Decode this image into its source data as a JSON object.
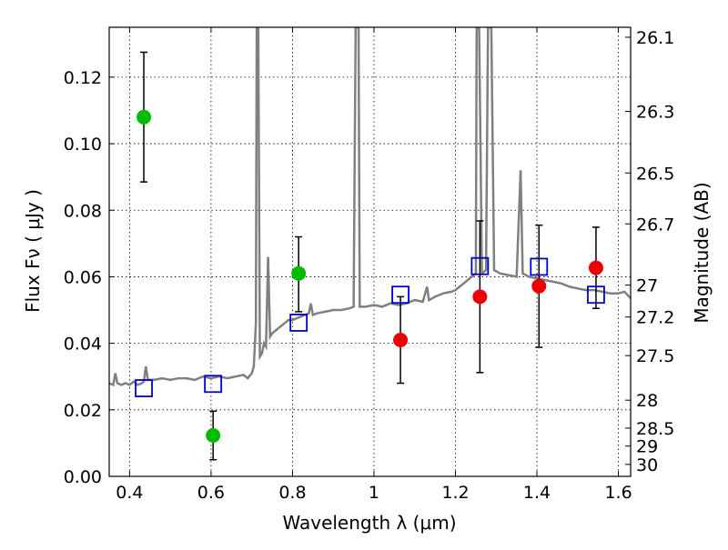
{
  "chart_data": {
    "type": "scatter",
    "xlabel": "Wavelength  λ (μm)",
    "ylabel": "Flux  Fν  ( μJy )",
    "y2label": "Magnitude (AB)",
    "xlim": [
      0.35,
      1.63
    ],
    "ylim": [
      0.0,
      0.135
    ],
    "grid": true,
    "x_ticks": [
      {
        "value": 0.4,
        "label": "0.4"
      },
      {
        "value": 0.6,
        "label": "0.6"
      },
      {
        "value": 0.8,
        "label": "0.8"
      },
      {
        "value": 1.0,
        "label": "1"
      },
      {
        "value": 1.2,
        "label": "1.2"
      },
      {
        "value": 1.4,
        "label": "1.4"
      },
      {
        "value": 1.6,
        "label": "1.6"
      }
    ],
    "y_ticks": [
      {
        "value": 0.0,
        "label": "0.00"
      },
      {
        "value": 0.02,
        "label": "0.02"
      },
      {
        "value": 0.04,
        "label": "0.04"
      },
      {
        "value": 0.06,
        "label": "0.06"
      },
      {
        "value": 0.08,
        "label": "0.08"
      },
      {
        "value": 0.1,
        "label": "0.10"
      },
      {
        "value": 0.12,
        "label": "0.12"
      }
    ],
    "magnitude_ticks": [
      {
        "flux": 0.132,
        "label": "26.1"
      },
      {
        "flux": 0.1097,
        "label": "26.3"
      },
      {
        "flux": 0.0912,
        "label": "26.5"
      },
      {
        "flux": 0.0759,
        "label": "26.7"
      },
      {
        "flux": 0.0575,
        "label": "27"
      },
      {
        "flux": 0.0479,
        "label": "27.2"
      },
      {
        "flux": 0.0363,
        "label": "27.5"
      },
      {
        "flux": 0.0229,
        "label": "28"
      },
      {
        "flux": 0.0145,
        "label": "28.5"
      },
      {
        "flux": 0.0091,
        "label": "29"
      },
      {
        "flux": 0.0036,
        "label": "30"
      }
    ],
    "colors": {
      "spectrum": "#808080",
      "green": "#00bb00",
      "red": "#ee0000",
      "model": "#0000cc",
      "errorbar": "#000000"
    },
    "spectrum": [
      [
        0.35,
        0.028
      ],
      [
        0.36,
        0.0275
      ],
      [
        0.365,
        0.031
      ],
      [
        0.37,
        0.028
      ],
      [
        0.38,
        0.0275
      ],
      [
        0.39,
        0.028
      ],
      [
        0.4,
        0.0275
      ],
      [
        0.41,
        0.0285
      ],
      [
        0.42,
        0.0275
      ],
      [
        0.43,
        0.028
      ],
      [
        0.435,
        0.0285
      ],
      [
        0.44,
        0.033
      ],
      [
        0.445,
        0.029
      ],
      [
        0.46,
        0.029
      ],
      [
        0.48,
        0.0295
      ],
      [
        0.5,
        0.029
      ],
      [
        0.52,
        0.0295
      ],
      [
        0.54,
        0.0295
      ],
      [
        0.56,
        0.029
      ],
      [
        0.58,
        0.03
      ],
      [
        0.6,
        0.0295
      ],
      [
        0.62,
        0.03
      ],
      [
        0.64,
        0.0295
      ],
      [
        0.66,
        0.03
      ],
      [
        0.68,
        0.0305
      ],
      [
        0.69,
        0.0295
      ],
      [
        0.7,
        0.031
      ],
      [
        0.705,
        0.033
      ],
      [
        0.71,
        0.046
      ],
      [
        0.712,
        0.135
      ],
      [
        0.716,
        0.135
      ],
      [
        0.72,
        0.036
      ],
      [
        0.725,
        0.037
      ],
      [
        0.73,
        0.04
      ],
      [
        0.735,
        0.039
      ],
      [
        0.74,
        0.066
      ],
      [
        0.745,
        0.042
      ],
      [
        0.75,
        0.043
      ],
      [
        0.76,
        0.044
      ],
      [
        0.77,
        0.045
      ],
      [
        0.78,
        0.046
      ],
      [
        0.79,
        0.047
      ],
      [
        0.8,
        0.047
      ],
      [
        0.81,
        0.0475
      ],
      [
        0.82,
        0.048
      ],
      [
        0.83,
        0.0485
      ],
      [
        0.84,
        0.049
      ],
      [
        0.845,
        0.052
      ],
      [
        0.85,
        0.0485
      ],
      [
        0.86,
        0.049
      ],
      [
        0.88,
        0.0495
      ],
      [
        0.9,
        0.05
      ],
      [
        0.92,
        0.05
      ],
      [
        0.94,
        0.0505
      ],
      [
        0.95,
        0.051
      ],
      [
        0.955,
        0.135
      ],
      [
        0.962,
        0.135
      ],
      [
        0.965,
        0.051
      ],
      [
        0.98,
        0.051
      ],
      [
        1.0,
        0.0515
      ],
      [
        1.02,
        0.051
      ],
      [
        1.04,
        0.052
      ],
      [
        1.06,
        0.0515
      ],
      [
        1.08,
        0.052
      ],
      [
        1.1,
        0.053
      ],
      [
        1.12,
        0.0525
      ],
      [
        1.13,
        0.057
      ],
      [
        1.135,
        0.053
      ],
      [
        1.15,
        0.054
      ],
      [
        1.17,
        0.055
      ],
      [
        1.19,
        0.0555
      ],
      [
        1.2,
        0.056
      ],
      [
        1.21,
        0.057
      ],
      [
        1.22,
        0.058
      ],
      [
        1.23,
        0.059
      ],
      [
        1.24,
        0.06
      ],
      [
        1.25,
        0.061
      ],
      [
        1.252,
        0.135
      ],
      [
        1.258,
        0.135
      ],
      [
        1.265,
        0.061
      ],
      [
        1.275,
        0.062
      ],
      [
        1.28,
        0.135
      ],
      [
        1.288,
        0.135
      ],
      [
        1.295,
        0.062
      ],
      [
        1.31,
        0.061
      ],
      [
        1.33,
        0.0605
      ],
      [
        1.35,
        0.06
      ],
      [
        1.36,
        0.092
      ],
      [
        1.365,
        0.061
      ],
      [
        1.38,
        0.06
      ],
      [
        1.4,
        0.0595
      ],
      [
        1.42,
        0.059
      ],
      [
        1.44,
        0.0585
      ],
      [
        1.46,
        0.058
      ],
      [
        1.48,
        0.057
      ],
      [
        1.5,
        0.0565
      ],
      [
        1.52,
        0.056
      ],
      [
        1.54,
        0.056
      ],
      [
        1.56,
        0.0555
      ],
      [
        1.58,
        0.055
      ],
      [
        1.6,
        0.055
      ],
      [
        1.615,
        0.0555
      ],
      [
        1.63,
        0.0535
      ]
    ],
    "points_green": [
      {
        "x": 0.435,
        "y": 0.108,
        "err_low": 0.0885,
        "err_high": 0.1275
      },
      {
        "x": 0.605,
        "y": 0.0123,
        "err_low": 0.005,
        "err_high": 0.0196
      },
      {
        "x": 0.815,
        "y": 0.061,
        "err_low": 0.0495,
        "err_high": 0.072
      }
    ],
    "points_red": [
      {
        "x": 1.065,
        "y": 0.041,
        "err_low": 0.028,
        "err_high": 0.054
      },
      {
        "x": 1.26,
        "y": 0.054,
        "err_low": 0.0312,
        "err_high": 0.0768
      },
      {
        "x": 1.405,
        "y": 0.0572,
        "err_low": 0.0388,
        "err_high": 0.0755
      },
      {
        "x": 1.545,
        "y": 0.0627,
        "err_low": 0.0505,
        "err_high": 0.0749
      }
    ],
    "model_points": [
      {
        "x": 0.435,
        "y": 0.0265
      },
      {
        "x": 0.605,
        "y": 0.0278
      },
      {
        "x": 0.815,
        "y": 0.0462
      },
      {
        "x": 1.065,
        "y": 0.0546
      },
      {
        "x": 1.26,
        "y": 0.0632
      },
      {
        "x": 1.405,
        "y": 0.063
      },
      {
        "x": 1.545,
        "y": 0.0546
      }
    ]
  }
}
